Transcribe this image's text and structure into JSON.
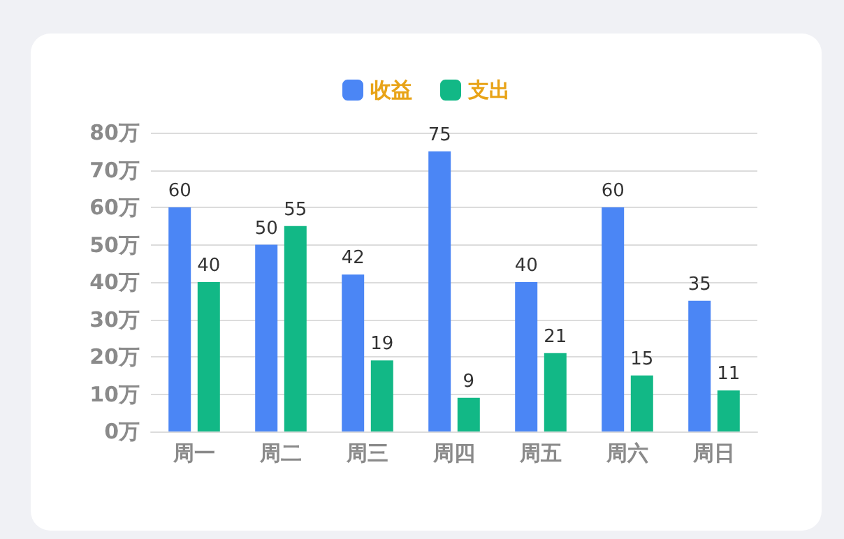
{
  "chart_data": {
    "type": "bar",
    "categories": [
      "周一",
      "周二",
      "周三",
      "周四",
      "周五",
      "周六",
      "周日"
    ],
    "series": [
      {
        "name": "收益",
        "color": "#4b86f5",
        "values": [
          60,
          50,
          42,
          75,
          40,
          60,
          35
        ]
      },
      {
        "name": "支出",
        "color": "#12b886",
        "values": [
          40,
          55,
          19,
          9,
          21,
          15,
          11
        ]
      }
    ],
    "ylim": [
      0,
      80
    ],
    "yticks": [
      {
        "value": 0,
        "label": "0万"
      },
      {
        "value": 10,
        "label": "10万"
      },
      {
        "value": 20,
        "label": "20万"
      },
      {
        "value": 30,
        "label": "30万"
      },
      {
        "value": 40,
        "label": "40万"
      },
      {
        "value": 50,
        "label": "50万"
      },
      {
        "value": 60,
        "label": "60万"
      },
      {
        "value": 70,
        "label": "70万"
      },
      {
        "value": 80,
        "label": "80万"
      }
    ],
    "grid": "y",
    "legend": "top",
    "data_labels": true
  }
}
